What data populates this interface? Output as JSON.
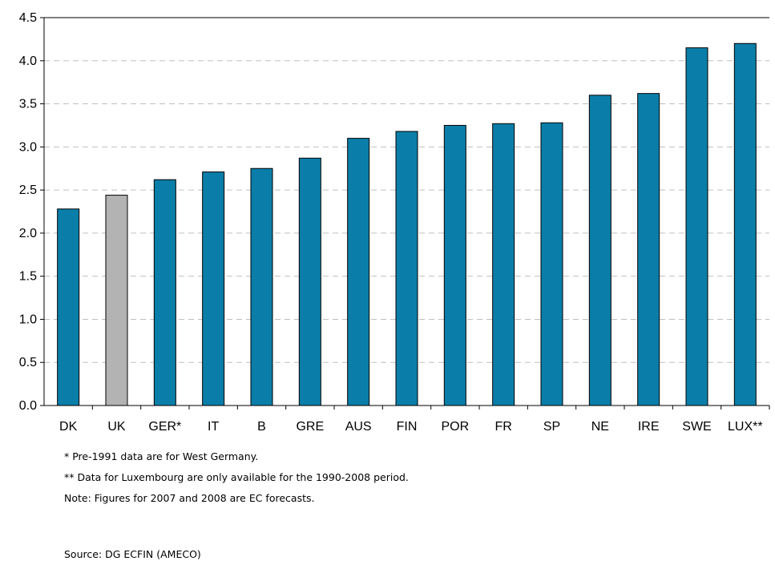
{
  "chart_data": {
    "type": "bar",
    "categories": [
      "DK",
      "UK",
      "GER*",
      "IT",
      "B",
      "GRE",
      "AUS",
      "FIN",
      "POR",
      "FR",
      "SP",
      "NE",
      "IRE",
      "SWE",
      "LUX**"
    ],
    "values": [
      2.28,
      2.44,
      2.62,
      2.71,
      2.75,
      2.87,
      3.1,
      3.18,
      3.25,
      3.27,
      3.28,
      3.6,
      3.62,
      4.15,
      4.2
    ],
    "highlight": "UK",
    "colors": {
      "bar": "#0A7EA8",
      "highlight": "#B3B3B3",
      "grid": "#C0C0C0"
    },
    "ylim": [
      0,
      4.5
    ],
    "yticks": [
      "0.0",
      "0.5",
      "1.0",
      "1.5",
      "2.0",
      "2.5",
      "3.0",
      "3.5",
      "4.0",
      "4.5"
    ],
    "grid": true,
    "legend": false
  },
  "notes": {
    "note1": "* Pre-1991 data are for West Germany.",
    "note2": "** Data for Luxembourg are only available for the 1990-2008 period.",
    "note3": "Note: Figures for 2007 and 2008 are EC forecasts.",
    "source": "Source: DG ECFIN (AMECO)"
  }
}
